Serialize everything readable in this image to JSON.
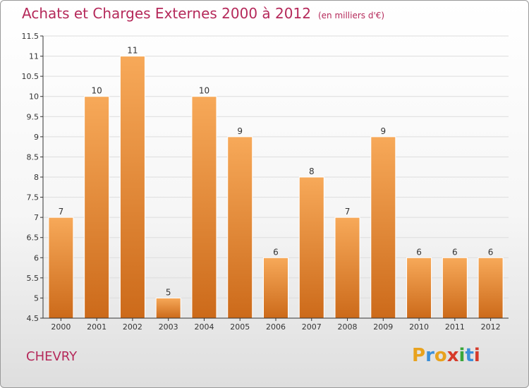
{
  "header": {
    "title": "Achats et Charges Externes 2000 à 2012",
    "unit": "(en milliers d'€)"
  },
  "footer": {
    "location": "CHEVRY",
    "logo_text": "Proxiti",
    "logo_colors": [
      "#e8a21e",
      "#3b8fd8",
      "#e8a21e",
      "#d63a2a",
      "#3aa63a",
      "#3b8fd8",
      "#d63a2a"
    ]
  },
  "colors": {
    "title": "#b5295a",
    "bar_light": "#f7a959",
    "bar_dark": "#cc6a1a",
    "axis": "#333333",
    "grid": "#dddddd"
  },
  "chart_data": {
    "type": "bar",
    "categories": [
      "2000",
      "2001",
      "2002",
      "2003",
      "2004",
      "2005",
      "2006",
      "2007",
      "2008",
      "2009",
      "2010",
      "2011",
      "2012"
    ],
    "values": [
      7,
      10,
      11,
      5,
      10,
      9,
      6,
      8,
      7,
      9,
      6,
      6,
      6
    ],
    "data_labels": [
      "7",
      "10",
      "11",
      "5",
      "10",
      "9",
      "6",
      "8",
      "7",
      "9",
      "6",
      "6",
      "6"
    ],
    "ylim": [
      4.5,
      11.5
    ],
    "yticks": [
      4.5,
      5,
      5.5,
      6,
      6.5,
      7,
      7.5,
      8,
      8.5,
      9,
      9.5,
      10,
      10.5,
      11,
      11.5
    ],
    "ytick_labels": [
      "4.5",
      "5",
      "5.5",
      "6",
      "6.5",
      "7",
      "7.5",
      "8",
      "8.5",
      "9",
      "9.5",
      "10",
      "10.5",
      "11",
      "11.5"
    ],
    "grid": true
  }
}
